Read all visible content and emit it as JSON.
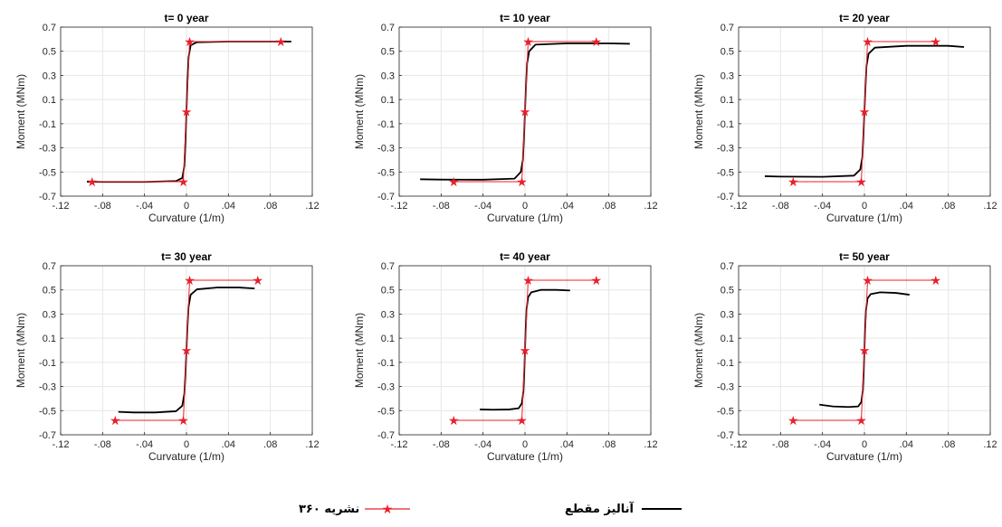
{
  "colors": {
    "analysis": "#000000",
    "code": "#e8202a",
    "grid": "#e6e6e6",
    "axis": "#262626"
  },
  "chart_data": [
    {
      "type": "line",
      "title": "t= 0 year",
      "xlabel": "Curvature (1/m)",
      "ylabel": "Moment (MNm)",
      "xlim": [
        -0.12,
        0.12
      ],
      "ylim": [
        -0.7,
        0.7
      ],
      "xticks": [
        -0.12,
        -0.08,
        -0.04,
        0,
        0.04,
        0.08,
        0.12
      ],
      "yticks": [
        -0.7,
        -0.5,
        -0.3,
        -0.1,
        0.1,
        0.3,
        0.5,
        0.7
      ],
      "grid": true,
      "series": [
        {
          "kind": "analysis",
          "x": [
            -0.095,
            -0.08,
            -0.04,
            -0.01,
            -0.004,
            -0.002,
            -0.001,
            0,
            0.001,
            0.002,
            0.004,
            0.01,
            0.04,
            0.08,
            0.1
          ],
          "y": [
            -0.58,
            -0.582,
            -0.582,
            -0.575,
            -0.55,
            -0.45,
            -0.25,
            0,
            0.25,
            0.45,
            0.55,
            0.575,
            0.58,
            0.58,
            0.58
          ]
        },
        {
          "kind": "code",
          "x": [
            -0.09,
            -0.003,
            0,
            0.003,
            0.09
          ],
          "y": [
            -0.58,
            -0.58,
            0,
            0.58,
            0.58
          ]
        }
      ]
    },
    {
      "type": "line",
      "title": "t= 10 year",
      "xlabel": "Curvature (1/m)",
      "ylabel": "Moment (MNm)",
      "xlim": [
        -0.12,
        0.12
      ],
      "ylim": [
        -0.7,
        0.7
      ],
      "xticks": [
        -0.12,
        -0.08,
        -0.04,
        0,
        0.04,
        0.08,
        0.12
      ],
      "yticks": [
        -0.7,
        -0.5,
        -0.3,
        -0.1,
        0.1,
        0.3,
        0.5,
        0.7
      ],
      "grid": true,
      "series": [
        {
          "kind": "analysis",
          "x": [
            -0.1,
            -0.08,
            -0.04,
            -0.01,
            -0.004,
            -0.002,
            -0.001,
            0,
            0.001,
            0.002,
            0.004,
            0.01,
            0.04,
            0.08,
            0.1
          ],
          "y": [
            -0.56,
            -0.563,
            -0.564,
            -0.555,
            -0.5,
            -0.4,
            -0.22,
            0,
            0.22,
            0.4,
            0.5,
            0.555,
            0.565,
            0.565,
            0.562
          ]
        },
        {
          "kind": "code",
          "x": [
            -0.068,
            -0.003,
            0,
            0.003,
            0.068
          ],
          "y": [
            -0.58,
            -0.58,
            0,
            0.58,
            0.58
          ]
        }
      ]
    },
    {
      "type": "line",
      "title": "t= 20 year",
      "xlabel": "Curvature (1/m)",
      "ylabel": "Moment (MNm)",
      "xlim": [
        -0.12,
        0.12
      ],
      "ylim": [
        -0.7,
        0.7
      ],
      "xticks": [
        -0.12,
        -0.08,
        -0.04,
        0,
        0.04,
        0.08,
        0.12
      ],
      "yticks": [
        -0.7,
        -0.5,
        -0.3,
        -0.1,
        0.1,
        0.3,
        0.5,
        0.7
      ],
      "grid": true,
      "series": [
        {
          "kind": "analysis",
          "x": [
            -0.095,
            -0.08,
            -0.04,
            -0.01,
            -0.004,
            -0.002,
            -0.001,
            0,
            0.001,
            0.002,
            0.004,
            0.01,
            0.04,
            0.08,
            0.095
          ],
          "y": [
            -0.535,
            -0.538,
            -0.54,
            -0.53,
            -0.48,
            -0.38,
            -0.2,
            0,
            0.2,
            0.38,
            0.48,
            0.53,
            0.545,
            0.545,
            0.535
          ]
        },
        {
          "kind": "code",
          "x": [
            -0.068,
            -0.003,
            0,
            0.003,
            0.068
          ],
          "y": [
            -0.58,
            -0.58,
            0,
            0.58,
            0.58
          ]
        }
      ]
    },
    {
      "type": "line",
      "title": "t= 30 year",
      "xlabel": "Curvature (1/m)",
      "ylabel": "Moment (MNm)",
      "xlim": [
        -0.12,
        0.12
      ],
      "ylim": [
        -0.7,
        0.7
      ],
      "xticks": [
        -0.12,
        -0.08,
        -0.04,
        0,
        0.04,
        0.08,
        0.12
      ],
      "yticks": [
        -0.7,
        -0.5,
        -0.3,
        -0.1,
        0.1,
        0.3,
        0.5,
        0.7
      ],
      "grid": true,
      "series": [
        {
          "kind": "analysis",
          "x": [
            -0.065,
            -0.05,
            -0.03,
            -0.01,
            -0.004,
            -0.002,
            -0.001,
            0,
            0.001,
            0.002,
            0.004,
            0.01,
            0.03,
            0.05,
            0.065
          ],
          "y": [
            -0.51,
            -0.515,
            -0.515,
            -0.505,
            -0.46,
            -0.36,
            -0.2,
            0,
            0.2,
            0.36,
            0.46,
            0.505,
            0.52,
            0.52,
            0.512
          ]
        },
        {
          "kind": "code",
          "x": [
            -0.068,
            -0.003,
            0,
            0.003,
            0.068
          ],
          "y": [
            -0.58,
            -0.58,
            0,
            0.58,
            0.58
          ]
        }
      ]
    },
    {
      "type": "line",
      "title": "t= 40 year",
      "xlabel": "Curvature (1/m)",
      "ylabel": "Moment (MNm)",
      "xlim": [
        -0.12,
        0.12
      ],
      "ylim": [
        -0.7,
        0.7
      ],
      "xticks": [
        -0.12,
        -0.08,
        -0.04,
        0,
        0.04,
        0.08,
        0.12
      ],
      "yticks": [
        -0.7,
        -0.5,
        -0.3,
        -0.1,
        0.1,
        0.3,
        0.5,
        0.7
      ],
      "grid": true,
      "series": [
        {
          "kind": "analysis",
          "x": [
            -0.043,
            -0.03,
            -0.015,
            -0.006,
            -0.003,
            -0.0015,
            -0.0007,
            0,
            0.0007,
            0.0015,
            0.003,
            0.006,
            0.015,
            0.03,
            0.043
          ],
          "y": [
            -0.49,
            -0.492,
            -0.49,
            -0.48,
            -0.44,
            -0.34,
            -0.18,
            0,
            0.18,
            0.34,
            0.44,
            0.48,
            0.5,
            0.5,
            0.495
          ]
        },
        {
          "kind": "code",
          "x": [
            -0.068,
            -0.003,
            0,
            0.003,
            0.068
          ],
          "y": [
            -0.58,
            -0.58,
            0,
            0.58,
            0.58
          ]
        }
      ]
    },
    {
      "type": "line",
      "title": "t= 50 year",
      "xlabel": "Curvature (1/m)",
      "ylabel": "Moment (MNm)",
      "xlim": [
        -0.12,
        0.12
      ],
      "ylim": [
        -0.7,
        0.7
      ],
      "xticks": [
        -0.12,
        -0.08,
        -0.04,
        0,
        0.04,
        0.08,
        0.12
      ],
      "yticks": [
        -0.7,
        -0.5,
        -0.3,
        -0.1,
        0.1,
        0.3,
        0.5,
        0.7
      ],
      "grid": true,
      "series": [
        {
          "kind": "analysis",
          "x": [
            -0.043,
            -0.03,
            -0.015,
            -0.006,
            -0.003,
            -0.0015,
            -0.0007,
            0,
            0.0007,
            0.0015,
            0.003,
            0.006,
            0.015,
            0.03,
            0.043
          ],
          "y": [
            -0.45,
            -0.465,
            -0.47,
            -0.465,
            -0.43,
            -0.33,
            -0.18,
            0,
            0.18,
            0.33,
            0.43,
            0.465,
            0.48,
            0.475,
            0.46
          ]
        },
        {
          "kind": "code",
          "x": [
            -0.068,
            -0.003,
            0,
            0.003,
            0.068
          ],
          "y": [
            -0.58,
            -0.58,
            0,
            0.58,
            0.58
          ]
        }
      ]
    }
  ],
  "legend": {
    "analysis_label": "آنالیز مقطع",
    "code_label": "نشریه ۳۶۰"
  }
}
